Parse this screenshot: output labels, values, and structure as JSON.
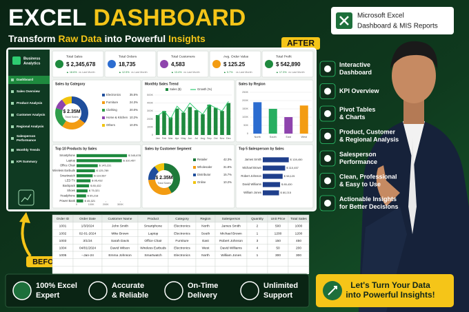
{
  "header": {
    "title_1": "EXCEL",
    "title_2": "DASHBOARD",
    "subtitle_1": "Transform",
    "subtitle_2": "Raw Data",
    "subtitle_3": "into Powerful",
    "subtitle_4": "Insights"
  },
  "badge": {
    "line1": "Microsoft Excel",
    "line2": "Dashboard & MIS Reports"
  },
  "after_tag": "AFTER",
  "before_tag": "BEFORE",
  "dashboard": {
    "brand": [
      "Business",
      "Analytics"
    ],
    "menu": [
      [
        "Dashboard"
      ],
      [
        "Sales Overview"
      ],
      [
        "Product Analysis"
      ],
      [
        "Customer Analysis"
      ],
      [
        "Regional Analysis"
      ],
      [
        "Salesperson",
        "Performance"
      ],
      [
        "Monthly Trends"
      ],
      [
        "KPI Summary"
      ]
    ],
    "kpis": [
      {
        "label": "Total Sales",
        "value": "$ 2,345,678",
        "change": "▲ 18.6%",
        "note": "vs Last Month",
        "color": "#1e8a3e"
      },
      {
        "label": "Total Orders",
        "value": "18,735",
        "change": "▲ 12.5%",
        "note": "vs Last Month",
        "color": "#2b6cd0"
      },
      {
        "label": "Total Customers",
        "value": "4,583",
        "change": "▲ 13.4%",
        "note": "vs Last Month",
        "color": "#8e44ad"
      },
      {
        "label": "Avg. Order Value",
        "value": "$ 125.25",
        "change": "▲ 5.7%",
        "note": "vs Last Month",
        "color": "#f39c12"
      },
      {
        "label": "Total Profit",
        "value": "$ 542,890",
        "change": "▲ 17.3%",
        "note": "vs Last Month",
        "color": "#1e8a3e"
      }
    ],
    "category_chart": {
      "type": "donut",
      "title": "Sales by Category",
      "center_value": "$ 2.35M",
      "center_label": "Total Sales",
      "categories": [
        "Electronics",
        "Furniture",
        "Clothing",
        "Home & Kitchen",
        "Others"
      ],
      "values": [
        35.5,
        24.3,
        20.0,
        10.2,
        10.0
      ],
      "value_labels": [
        "35.5%",
        "24.3%",
        "20.0%",
        "10.2%",
        "10.0%"
      ],
      "colors": [
        "#1f4e9c",
        "#f39c12",
        "#2e9e4a",
        "#8e44ad",
        "#f1c40f"
      ]
    },
    "monthly_chart": {
      "type": "bar",
      "title": "Monthly Sales Trend",
      "categories": [
        "Jan",
        "Feb",
        "Mar",
        "Apr",
        "May",
        "Jun",
        "Jul",
        "Aug",
        "Sep",
        "Oct",
        "Nov",
        "Dec"
      ],
      "series": [
        {
          "name": "Sales ($)",
          "color": "#1e8a3e",
          "values": [
            250000,
            300000,
            220000,
            330000,
            280000,
            350000,
            310000,
            260000,
            380000,
            340000,
            300000,
            400000
          ]
        },
        {
          "name": "Growth (%)",
          "color": "#2ecc71",
          "axis": "y2",
          "values": [
            12,
            15,
            10,
            18,
            14,
            20,
            16,
            13,
            19,
            17,
            15,
            21
          ]
        }
      ],
      "ylim": [
        0,
        500000
      ],
      "yticks": [
        0,
        {
          "value": 100000,
          "label": "100K"
        },
        {
          "value": 200000,
          "label": "200K"
        },
        {
          "value": 300000,
          "label": "300K"
        },
        {
          "value": 400000,
          "label": "400K"
        },
        {
          "value": 500000,
          "label": "500K"
        }
      ],
      "y2lim": [
        0,
        25
      ],
      "grid": true
    },
    "region_chart": {
      "type": "bar",
      "title": "Sales by Region",
      "categories": [
        "North",
        "South",
        "East",
        "West"
      ],
      "values": [
        190000,
        150000,
        100000,
        170000
      ],
      "colors": [
        "#2b6cd0",
        "#27ae60",
        "#8e44ad",
        "#f39c12"
      ],
      "ylim": [
        0,
        250000
      ],
      "yticks": [
        0,
        {
          "value": 50000,
          "label": "50K"
        },
        {
          "value": 100000,
          "label": "100K"
        },
        {
          "value": 150000,
          "label": "150K"
        },
        {
          "value": 200000,
          "label": "200K"
        },
        {
          "value": 250000,
          "label": "250K"
        }
      ],
      "grid": true
    },
    "products_chart": {
      "type": "hbar",
      "title": "Top 10 Products by Sales",
      "categories": [
        "Smartphone",
        "Laptop",
        "Office Chair",
        "Wireless Earbuds",
        "Smartwatch",
        "LED TV",
        "Backpack",
        "Shoes",
        "Headphone",
        "Power Bank"
      ],
      "values": [
        345678,
        310457,
        145231,
        125789,
        110567,
        95432,
        85432,
        75321,
        65218,
        45321
      ],
      "value_labels": [
        "$ 345,678",
        "$ 310,457",
        "$ 145,231",
        "$ 125,789",
        "$ 110,567",
        "$ 95,432",
        "$ 85,432",
        "$ 75,321",
        "$ 65,218",
        "$ 45,321"
      ],
      "color": "#1e8a3e",
      "xlim": [
        0,
        350000
      ],
      "xticks": [
        0,
        {
          "value": 100000,
          "label": "100K"
        },
        {
          "value": 200000,
          "label": "200K"
        },
        {
          "value": 300000,
          "label": "300K"
        }
      ]
    },
    "segment_chart": {
      "type": "donut",
      "title": "Sales by Customer Segment",
      "center_value": "$ 2.35M",
      "center_label": "Total Sales",
      "categories": [
        "Retailer",
        "Wholesaler",
        "Distributor",
        "Online"
      ],
      "values": [
        42.3,
        31.8,
        15.7,
        10.2
      ],
      "value_labels": [
        "42.3%",
        "31.8%",
        "15.7%",
        "10.2%"
      ],
      "colors": [
        "#1e7a3a",
        "#f39c12",
        "#1f4e9c",
        "#f1c40f"
      ]
    },
    "salesperson_chart": {
      "type": "hbar",
      "title": "Top 5 Salesperson by Sales",
      "categories": [
        "James Smith",
        "Michael Brown",
        "Robert Johnson",
        "David Williams",
        "William Jones"
      ],
      "values": [
        128450,
        110457,
        98125,
        85430,
        80215
      ],
      "value_labels": [
        "$ 128,450",
        "$ 110,457",
        "$ 98,125",
        "$ 85,430",
        "$ 80,215"
      ],
      "color": "#1f3f8c",
      "xlim": [
        0,
        150000
      ]
    }
  },
  "before_table": {
    "headers": [
      "Order ID",
      "Order Date",
      "Customer Name",
      "Product",
      "Category",
      "Region",
      "Salesperson",
      "Quantity",
      "Unit Price",
      "Total Sales"
    ],
    "rows": [
      [
        "1001",
        "1/3/2024",
        "John Smith",
        "Smartphone",
        "Electronics",
        "North",
        "James Smith",
        "2",
        "500",
        "1000"
      ],
      [
        "1002",
        "02-01-2024",
        "Mike Brown",
        "Laptop",
        "Electronics",
        "South",
        "Michael Brown",
        "1",
        "1200",
        "1200"
      ],
      [
        "1003",
        "3/1/24",
        "Sarah Davis",
        "Office Chair",
        "Furniture",
        "East",
        "Robert Johnson",
        "3",
        "150",
        "450"
      ],
      [
        "1004",
        "04/01/2024",
        "David Wilson",
        "Wireless Earbuds",
        "Electronics",
        "West",
        "David Williams",
        "4",
        "50",
        "200"
      ],
      [
        "1005",
        "--Jan-24",
        "Emma Johnson",
        "Smartwatch",
        "Electronics",
        "North",
        "William Jones",
        "1",
        "300",
        "300"
      ]
    ]
  },
  "features": [
    [
      "Interactive",
      "Dashboard"
    ],
    [
      "KPI Overview"
    ],
    [
      "Pivot Tables",
      "& Charts"
    ],
    [
      "Product, Customer",
      "& Regional Analysis"
    ],
    [
      "Salesperson",
      "Performance"
    ],
    [
      "Clean, Professional",
      "& Easy to Use"
    ],
    [
      "Actionable Insights",
      "for Better Decisions"
    ]
  ],
  "benefits": [
    [
      "100% Excel",
      "Expert"
    ],
    [
      "Accurate",
      "& Reliable"
    ],
    [
      "On-Time",
      "Delivery"
    ],
    [
      "Unlimited",
      "Support"
    ]
  ],
  "cta": [
    "Let's Turn Your Data",
    "into Powerful Insights!"
  ]
}
